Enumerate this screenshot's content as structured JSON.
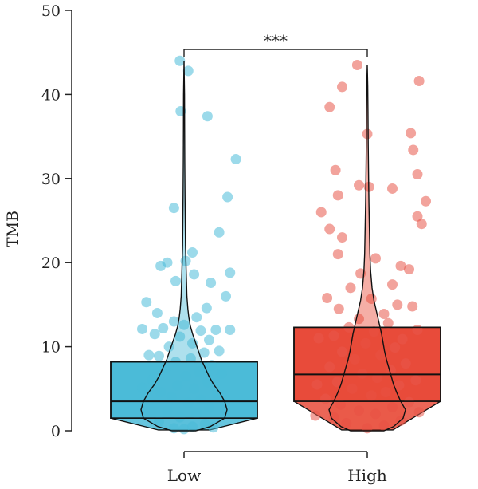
{
  "chart_data": {
    "type": "boxplot",
    "ylabel": "TMB",
    "xlabel": "",
    "ylim": [
      0,
      50
    ],
    "yticks": [
      0,
      10,
      20,
      30,
      40,
      50
    ],
    "categories": [
      "Low",
      "High"
    ],
    "significance": {
      "label": "***",
      "between": [
        "Low",
        "High"
      ]
    },
    "groups": [
      {
        "name": "Low",
        "color": "#4bbbd8",
        "point_color": "#4bbbd8",
        "box": {
          "q1": 1.5,
          "median": 3.5,
          "q3": 8.2,
          "min": 0.1,
          "max": 44
        },
        "violin": [
          [
            0,
            0.25
          ],
          [
            0.5,
            0.55
          ],
          [
            1.5,
            0.85
          ],
          [
            2.5,
            0.9
          ],
          [
            3.5,
            0.85
          ],
          [
            4.5,
            0.75
          ],
          [
            5.5,
            0.62
          ],
          [
            6.5,
            0.52
          ],
          [
            7.5,
            0.44
          ],
          [
            8.5,
            0.36
          ],
          [
            9.5,
            0.3
          ],
          [
            10.5,
            0.24
          ],
          [
            11.5,
            0.18
          ],
          [
            12.5,
            0.13
          ],
          [
            13.5,
            0.1
          ],
          [
            14.5,
            0.08
          ],
          [
            16,
            0.06
          ],
          [
            18,
            0.05
          ],
          [
            20,
            0.04
          ],
          [
            22,
            0.03
          ],
          [
            25,
            0.025
          ],
          [
            28,
            0.02
          ],
          [
            32,
            0.015
          ],
          [
            36,
            0.012
          ],
          [
            40,
            0.01
          ],
          [
            44,
            0
          ]
        ],
        "points": [
          [
            0.0,
            0.2
          ],
          [
            0.1,
            0.5
          ],
          [
            -0.12,
            0.3
          ],
          [
            0.25,
            0.8
          ],
          [
            -0.3,
            1.1
          ],
          [
            0.35,
            0.4
          ],
          [
            -0.05,
            1.6
          ],
          [
            0.15,
            2.1
          ],
          [
            -0.2,
            2.4
          ],
          [
            0.3,
            2.8
          ],
          [
            -0.35,
            3.1
          ],
          [
            0.05,
            3.3
          ],
          [
            0.2,
            3.7
          ],
          [
            -0.15,
            4.0
          ],
          [
            0.4,
            4.3
          ],
          [
            -0.28,
            4.6
          ],
          [
            0.12,
            5.0
          ],
          [
            -0.08,
            5.4
          ],
          [
            0.28,
            5.8
          ],
          [
            -0.38,
            6.1
          ],
          [
            0.02,
            6.5
          ],
          [
            0.18,
            7.0
          ],
          [
            -0.22,
            7.3
          ],
          [
            0.33,
            7.8
          ],
          [
            -0.1,
            8.2
          ],
          [
            0.08,
            8.6
          ],
          [
            -0.3,
            8.9
          ],
          [
            0.24,
            9.3
          ],
          [
            -0.42,
            9.0
          ],
          [
            0.42,
            9.5
          ],
          [
            -0.18,
            10.0
          ],
          [
            0.1,
            10.4
          ],
          [
            0.3,
            10.8
          ],
          [
            -0.05,
            11.2
          ],
          [
            -0.35,
            11.5
          ],
          [
            0.2,
            11.9
          ],
          [
            -0.25,
            12.2
          ],
          [
            0.38,
            12.0
          ],
          [
            0.0,
            12.6
          ],
          [
            -0.12,
            13.0
          ],
          [
            0.15,
            13.5
          ],
          [
            -0.32,
            14.0
          ],
          [
            0.27,
            14.6
          ],
          [
            -0.45,
            15.3
          ],
          [
            0.5,
            16.0
          ],
          [
            -0.1,
            17.8
          ],
          [
            0.32,
            17.6
          ],
          [
            0.12,
            18.6
          ],
          [
            -0.28,
            19.6
          ],
          [
            -0.2,
            20.0
          ],
          [
            0.02,
            20.2
          ],
          [
            0.1,
            21.2
          ],
          [
            0.55,
            18.8
          ],
          [
            -0.12,
            26.5
          ],
          [
            0.42,
            23.6
          ],
          [
            0.52,
            27.8
          ],
          [
            0.62,
            32.3
          ],
          [
            -0.04,
            38.0
          ],
          [
            0.28,
            37.4
          ],
          [
            -0.05,
            44.0
          ],
          [
            0.05,
            42.8
          ],
          [
            0.55,
            12.0
          ],
          [
            -0.5,
            12.1
          ],
          [
            0.45,
            6.8
          ],
          [
            -0.5,
            5.1
          ]
        ]
      },
      {
        "name": "High",
        "color": "#e84b3a",
        "point_color": "#e8574a",
        "box": {
          "q1": 3.5,
          "median": 6.7,
          "q3": 12.3,
          "min": 0.1,
          "max": 43.5
        },
        "violin": [
          [
            0,
            0.35
          ],
          [
            0.5,
            0.55
          ],
          [
            1.5,
            0.75
          ],
          [
            2.5,
            0.8
          ],
          [
            3.5,
            0.7
          ],
          [
            4.5,
            0.62
          ],
          [
            5.5,
            0.55
          ],
          [
            6.5,
            0.5
          ],
          [
            7.5,
            0.45
          ],
          [
            8.5,
            0.4
          ],
          [
            9.5,
            0.36
          ],
          [
            10.5,
            0.33
          ],
          [
            11.5,
            0.3
          ],
          [
            12.5,
            0.26
          ],
          [
            13.5,
            0.22
          ],
          [
            14.5,
            0.18
          ],
          [
            15.5,
            0.14
          ],
          [
            17,
            0.1
          ],
          [
            19,
            0.07
          ],
          [
            21,
            0.055
          ],
          [
            24,
            0.045
          ],
          [
            27,
            0.035
          ],
          [
            30,
            0.028
          ],
          [
            34,
            0.02
          ],
          [
            38,
            0.015
          ],
          [
            41,
            0.01
          ],
          [
            43.5,
            0
          ]
        ],
        "points": [
          [
            0.0,
            0.3
          ],
          [
            0.2,
            0.6
          ],
          [
            -0.25,
            0.9
          ],
          [
            0.4,
            1.2
          ],
          [
            -0.4,
            1.6
          ],
          [
            0.1,
            2.0
          ],
          [
            -0.1,
            2.4
          ],
          [
            0.3,
            2.8
          ],
          [
            -0.32,
            3.1
          ],
          [
            0.5,
            3.4
          ],
          [
            -0.5,
            3.8
          ],
          [
            0.05,
            4.2
          ],
          [
            0.22,
            4.6
          ],
          [
            -0.18,
            5.0
          ],
          [
            0.38,
            5.4
          ],
          [
            -0.36,
            5.8
          ],
          [
            0.12,
            6.3
          ],
          [
            -0.06,
            6.8
          ],
          [
            0.28,
            7.2
          ],
          [
            -0.45,
            7.6
          ],
          [
            0.46,
            8.0
          ],
          [
            -0.15,
            8.5
          ],
          [
            0.16,
            9.0
          ],
          [
            -0.3,
            9.4
          ],
          [
            0.33,
            9.9
          ],
          [
            -0.02,
            10.4
          ],
          [
            0.42,
            10.9
          ],
          [
            -0.4,
            11.3
          ],
          [
            0.08,
            11.8
          ],
          [
            -0.22,
            12.3
          ],
          [
            0.25,
            12.8
          ],
          [
            -0.1,
            13.3
          ],
          [
            0.2,
            13.9
          ],
          [
            -0.34,
            14.5
          ],
          [
            0.36,
            15.0
          ],
          [
            0.05,
            15.7
          ],
          [
            -0.48,
            15.8
          ],
          [
            0.54,
            14.8
          ],
          [
            -0.2,
            17.0
          ],
          [
            0.3,
            17.4
          ],
          [
            -0.08,
            18.7
          ],
          [
            0.4,
            19.6
          ],
          [
            -0.35,
            21.0
          ],
          [
            -0.3,
            23.0
          ],
          [
            0.5,
            19.2
          ],
          [
            -0.45,
            24.0
          ],
          [
            -0.55,
            26.0
          ],
          [
            0.1,
            20.5
          ],
          [
            -0.35,
            28.0
          ],
          [
            -0.1,
            29.2
          ],
          [
            0.02,
            29.0
          ],
          [
            0.3,
            28.8
          ],
          [
            -0.38,
            31.0
          ],
          [
            0.6,
            30.5
          ],
          [
            0.7,
            27.3
          ],
          [
            0.6,
            25.5
          ],
          [
            0.65,
            24.6
          ],
          [
            0.55,
            33.4
          ],
          [
            0.52,
            35.4
          ],
          [
            0.0,
            35.3
          ],
          [
            -0.45,
            38.5
          ],
          [
            -0.3,
            40.9
          ],
          [
            -0.12,
            43.5
          ],
          [
            0.62,
            41.6
          ],
          [
            0.6,
            12.0
          ],
          [
            -0.58,
            11.0
          ],
          [
            0.58,
            6.0
          ],
          [
            -0.6,
            5.5
          ],
          [
            0.62,
            2.2
          ],
          [
            -0.62,
            1.8
          ]
        ]
      }
    ]
  }
}
